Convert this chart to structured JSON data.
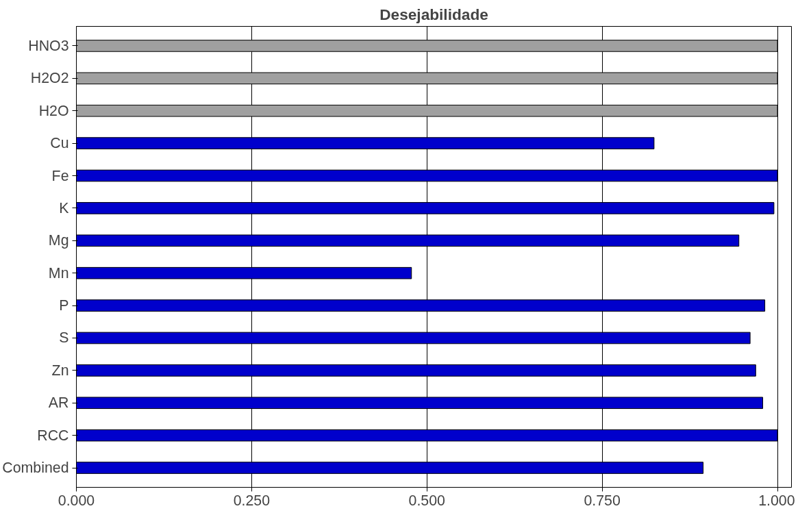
{
  "chart_data": {
    "type": "bar",
    "orientation": "horizontal",
    "title": "Desejabilidade",
    "categories": [
      "HNO3",
      "H2O2",
      "H2O",
      "Cu",
      "Fe",
      "K",
      "Mg",
      "Mn",
      "P",
      "S",
      "Zn",
      "AR",
      "RCC",
      "Combined"
    ],
    "values": [
      1.0,
      1.0,
      1.0,
      0.824,
      1.0,
      0.995,
      0.945,
      0.478,
      0.982,
      0.961,
      0.969,
      0.979,
      1.0,
      0.894
    ],
    "colors": [
      "#a0a0a0",
      "#a0a0a0",
      "#a0a0a0",
      "#0000cc",
      "#0000cc",
      "#0000cc",
      "#0000cc",
      "#0000cc",
      "#0000cc",
      "#0000cc",
      "#0000cc",
      "#0000cc",
      "#0000cc",
      "#0000cc"
    ],
    "xlim": [
      0,
      1.0
    ],
    "xticks": [
      {
        "value": 0,
        "label": "0.000"
      },
      {
        "value": 0.25,
        "label": "0.250"
      },
      {
        "value": 0.5,
        "label": "0.500"
      },
      {
        "value": 0.75,
        "label": "0.750"
      },
      {
        "value": 1.0,
        "label": "1.000"
      }
    ],
    "grid": "x"
  }
}
